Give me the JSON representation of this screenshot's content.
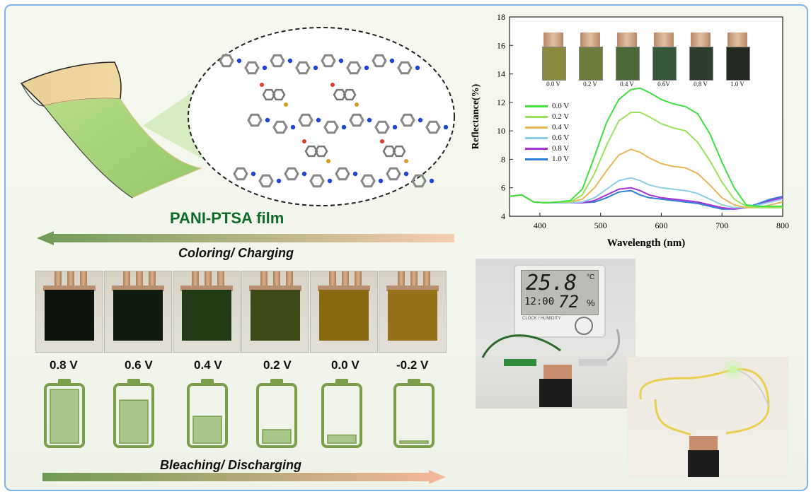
{
  "colors": {
    "frame_border": "#7fb2e5",
    "film_title": "#0f6a2a",
    "battery_green": "#7a9e4a",
    "arrow_green": "#6f9a55",
    "arrow_peach": "#f6cdb0"
  },
  "left": {
    "film_title": "PANI-PTSA film",
    "coloring_caption": "Coloring/ Charging",
    "bleaching_caption": "Bleaching/ Discharging",
    "film_colors": [
      "#0d140d",
      "#121b10",
      "#1f3a14",
      "#3e4a18",
      "#8a6a10",
      "#95711a"
    ],
    "voltages": [
      "0.8 V",
      "0.6 V",
      "0.4 V",
      "0.2 V",
      "0.0 V",
      "-0.2 V"
    ],
    "battery_levels": [
      1.0,
      0.8,
      0.5,
      0.25,
      0.15,
      0.0
    ]
  },
  "inset": {
    "labels": [
      "0.0 V",
      "0.2 V",
      "0.4 V",
      "0.6V",
      "0.8 V",
      "1.0 V"
    ],
    "colors": [
      "#8a8a3e",
      "#6e7c3c",
      "#4a6a38",
      "#36583a",
      "#2f3c30",
      "#222a22"
    ]
  },
  "photo_display": {
    "temperature": "25.8",
    "unit": "°C",
    "time": "12:00",
    "humidity": "72",
    "humidity_unit": "%",
    "brand": "CLOCK / HUMIDITY"
  },
  "chart_data": {
    "type": "line",
    "xlabel": "Wavelength (nm)",
    "ylabel": "Reflectance(%)",
    "xlim": [
      350,
      800
    ],
    "ylim": [
      4,
      18
    ],
    "xticks": [
      400,
      500,
      600,
      700,
      800
    ],
    "yticks": [
      4,
      6,
      8,
      10,
      12,
      14,
      16,
      18
    ],
    "legend_position": "left",
    "series": [
      {
        "name": "0.0 V",
        "color": "#3fe03f",
        "x": [
          350,
          370,
          390,
          410,
          430,
          450,
          470,
          490,
          510,
          530,
          550,
          565,
          580,
          600,
          620,
          640,
          660,
          680,
          700,
          720,
          740,
          760,
          780,
          800
        ],
        "y": [
          5.4,
          5.5,
          5.0,
          4.95,
          5.0,
          5.1,
          5.9,
          8.2,
          10.6,
          12.2,
          12.9,
          13.0,
          12.7,
          12.2,
          11.9,
          11.7,
          11.2,
          9.8,
          7.8,
          6.0,
          4.8,
          4.7,
          4.7,
          4.7
        ]
      },
      {
        "name": "0.2 V",
        "color": "#9ae35c",
        "x": [
          350,
          370,
          390,
          410,
          430,
          450,
          470,
          490,
          510,
          530,
          550,
          565,
          580,
          600,
          620,
          640,
          660,
          680,
          700,
          720,
          740,
          760,
          780,
          800
        ],
        "y": [
          5.4,
          5.5,
          5.0,
          4.95,
          5.0,
          5.0,
          5.5,
          7.0,
          9.0,
          10.7,
          11.3,
          11.3,
          11.0,
          10.5,
          10.2,
          10.0,
          9.2,
          7.9,
          6.4,
          5.2,
          4.7,
          4.6,
          4.6,
          4.6
        ]
      },
      {
        "name": "0.4 V",
        "color": "#e8b656",
        "x": [
          350,
          370,
          390,
          410,
          430,
          450,
          470,
          490,
          510,
          530,
          550,
          565,
          580,
          600,
          620,
          640,
          660,
          680,
          700,
          720,
          740,
          760,
          780,
          800
        ],
        "y": [
          5.4,
          5.5,
          5.0,
          4.95,
          5.0,
          5.0,
          5.2,
          6.0,
          7.2,
          8.3,
          8.7,
          8.5,
          8.1,
          7.7,
          7.5,
          7.4,
          7.0,
          6.2,
          5.3,
          4.8,
          4.6,
          4.6,
          4.8,
          5.0
        ]
      },
      {
        "name": "0.6 V",
        "color": "#8fcbea",
        "x": [
          350,
          370,
          390,
          410,
          430,
          450,
          470,
          490,
          510,
          530,
          550,
          565,
          580,
          600,
          620,
          640,
          660,
          680,
          700,
          720,
          740,
          760,
          780,
          800
        ],
        "y": [
          5.4,
          5.5,
          5.0,
          4.95,
          4.95,
          4.95,
          5.0,
          5.3,
          5.9,
          6.5,
          6.7,
          6.5,
          6.2,
          6.0,
          5.9,
          5.8,
          5.6,
          5.2,
          4.8,
          4.6,
          4.6,
          4.8,
          5.0,
          5.2
        ]
      },
      {
        "name": "0.8 V",
        "color": "#a632d6",
        "x": [
          350,
          370,
          390,
          410,
          430,
          450,
          470,
          490,
          510,
          530,
          550,
          565,
          580,
          600,
          620,
          640,
          660,
          680,
          700,
          720,
          740,
          760,
          780,
          800
        ],
        "y": [
          5.4,
          5.5,
          5.0,
          4.95,
          4.95,
          4.95,
          4.95,
          5.1,
          5.5,
          5.9,
          6.0,
          5.8,
          5.5,
          5.3,
          5.2,
          5.1,
          5.0,
          4.8,
          4.6,
          4.5,
          4.6,
          4.8,
          5.1,
          5.3
        ]
      },
      {
        "name": "1.0 V",
        "color": "#2f7fd6",
        "x": [
          350,
          370,
          390,
          410,
          430,
          450,
          470,
          490,
          510,
          530,
          550,
          565,
          580,
          600,
          620,
          640,
          660,
          680,
          700,
          720,
          740,
          760,
          780,
          800
        ],
        "y": [
          5.4,
          5.5,
          5.0,
          4.95,
          4.95,
          4.95,
          4.95,
          5.0,
          5.3,
          5.7,
          5.8,
          5.5,
          5.3,
          5.2,
          5.1,
          5.0,
          4.9,
          4.7,
          4.5,
          4.5,
          4.6,
          4.9,
          5.2,
          5.4
        ]
      }
    ]
  }
}
